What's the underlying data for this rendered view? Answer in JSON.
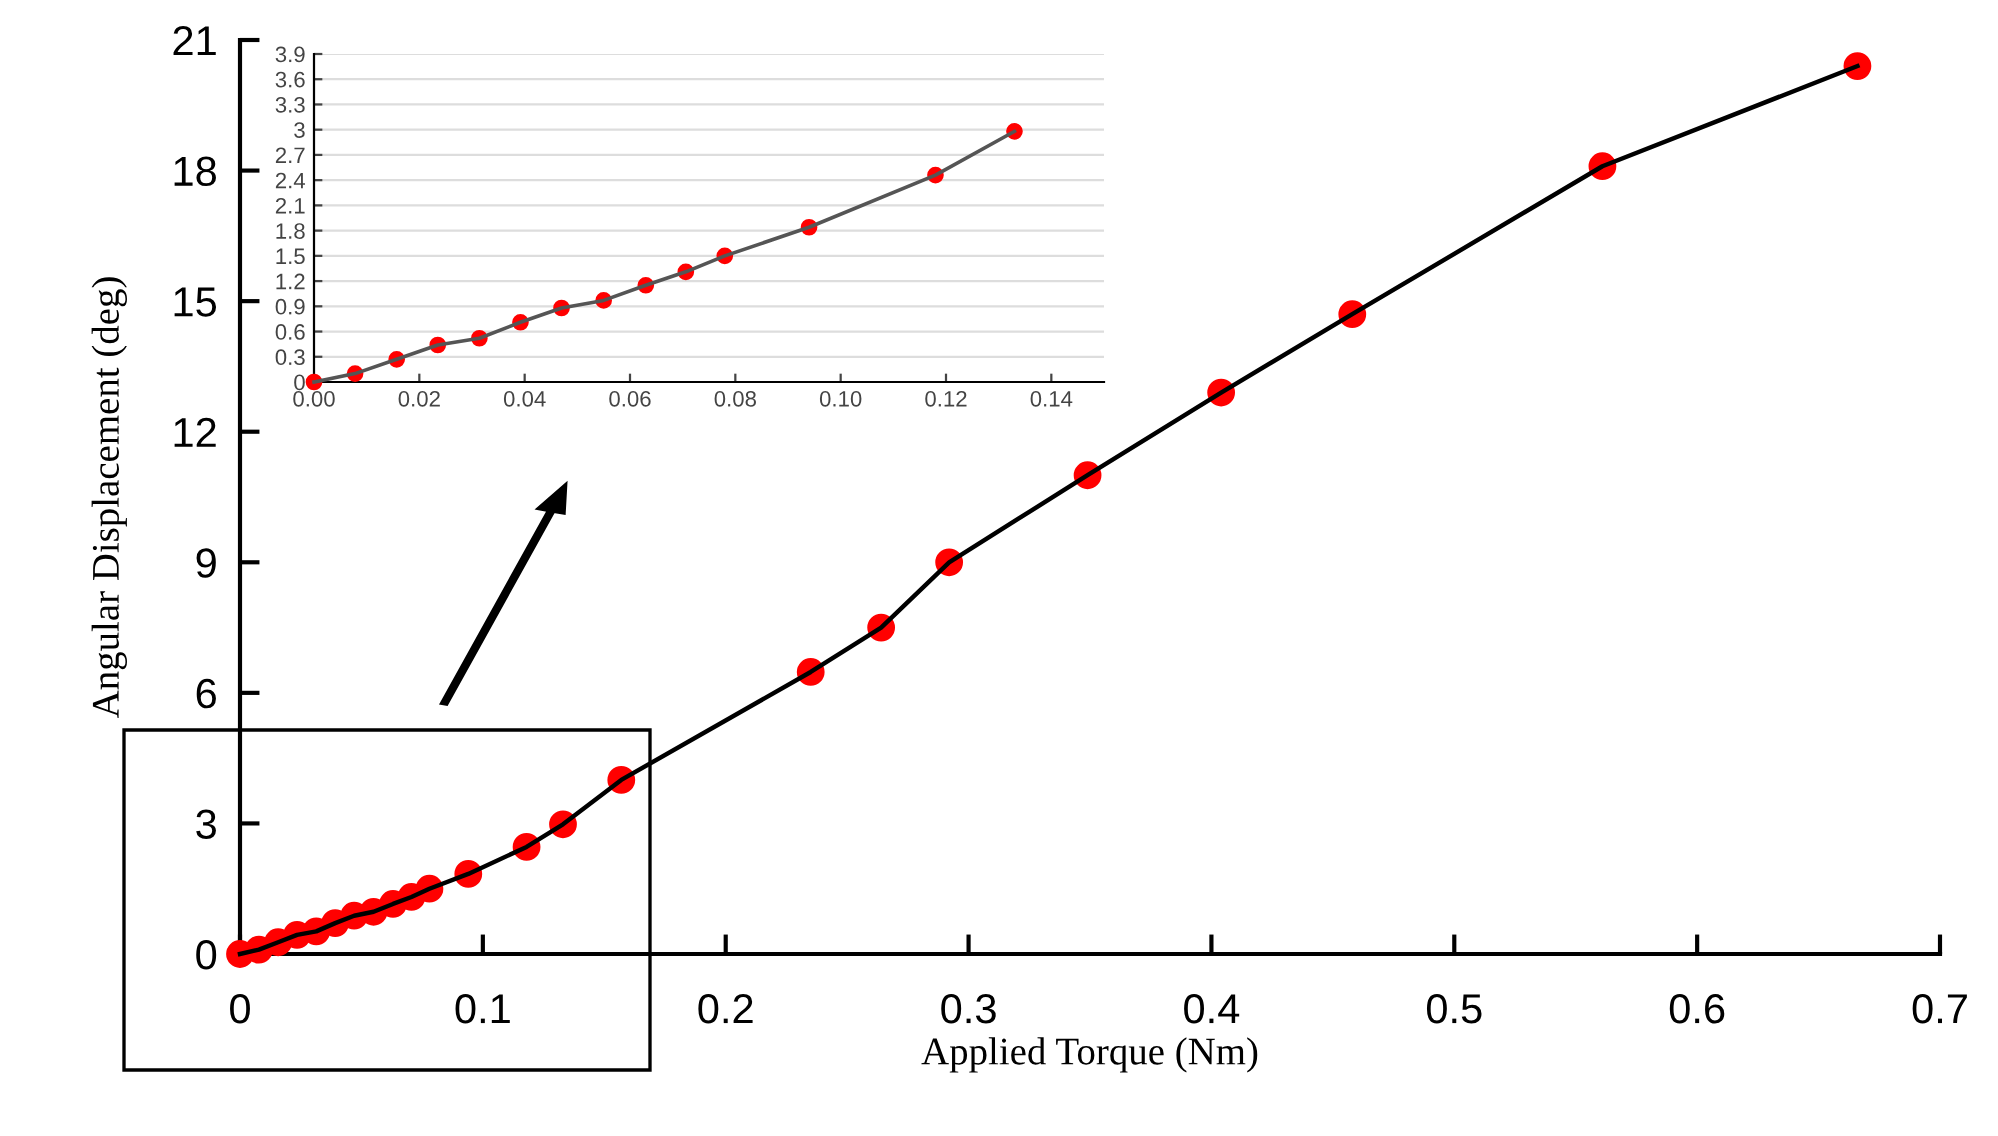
{
  "chart_data": [
    {
      "type": "line",
      "xlabel": "Applied Torque (Nm)",
      "ylabel": "Angular Displacement (deg)",
      "marker": "circle",
      "line_style": "solid",
      "grid": false,
      "xlim": [
        0,
        0.7
      ],
      "xticks": [
        0,
        0.1,
        0.2,
        0.3,
        0.4,
        0.5,
        0.6,
        0.7
      ],
      "ylim": [
        0,
        21
      ],
      "yticks": [
        0,
        3,
        6,
        9,
        12,
        15,
        18,
        21
      ],
      "x": [
        0,
        0.0078,
        0.0157,
        0.0235,
        0.0314,
        0.0392,
        0.047,
        0.055,
        0.063,
        0.0706,
        0.078,
        0.094,
        0.118,
        0.133,
        0.157,
        0.235,
        0.264,
        0.292,
        0.349,
        0.404,
        0.458,
        0.561,
        0.666
      ],
      "series": [
        {
          "color": "#ff0000",
          "values": [
            0,
            0.1,
            0.27,
            0.44,
            0.52,
            0.71,
            0.88,
            0.97,
            1.15,
            1.31,
            1.5,
            1.84,
            2.46,
            2.98,
            4.0,
            6.48,
            7.5,
            9.0,
            11.0,
            12.9,
            14.7,
            18.1,
            20.4
          ]
        }
      ]
    },
    {
      "type": "line",
      "marker": "circle",
      "line_style": "solid",
      "grid": "y",
      "xlim": [
        0,
        0.15
      ],
      "xticks": [
        {
          "value": 0,
          "label": "0.00"
        },
        {
          "value": 0.02,
          "label": "0.02"
        },
        {
          "value": 0.04,
          "label": "0.04"
        },
        {
          "value": 0.06,
          "label": "0.06"
        },
        {
          "value": 0.08,
          "label": "0.08"
        },
        {
          "value": 0.1,
          "label": "0.10"
        },
        {
          "value": 0.12,
          "label": "0.12"
        },
        {
          "value": 0.14,
          "label": "0.14"
        }
      ],
      "ylim": [
        0,
        3.9
      ],
      "yticks": [
        0,
        0.3,
        0.6,
        0.9,
        1.2,
        1.5,
        1.8,
        2.1,
        2.4,
        2.7,
        3,
        3.3,
        3.6,
        3.9
      ],
      "x": [
        0,
        0.0078,
        0.0157,
        0.0235,
        0.0314,
        0.0392,
        0.047,
        0.055,
        0.063,
        0.0706,
        0.078,
        0.094,
        0.118,
        0.133
      ],
      "series": [
        {
          "color": "#ff0000",
          "values": [
            0,
            0.1,
            0.27,
            0.44,
            0.52,
            0.71,
            0.88,
            0.97,
            1.15,
            1.31,
            1.5,
            1.84,
            2.46,
            2.98
          ]
        }
      ]
    }
  ]
}
